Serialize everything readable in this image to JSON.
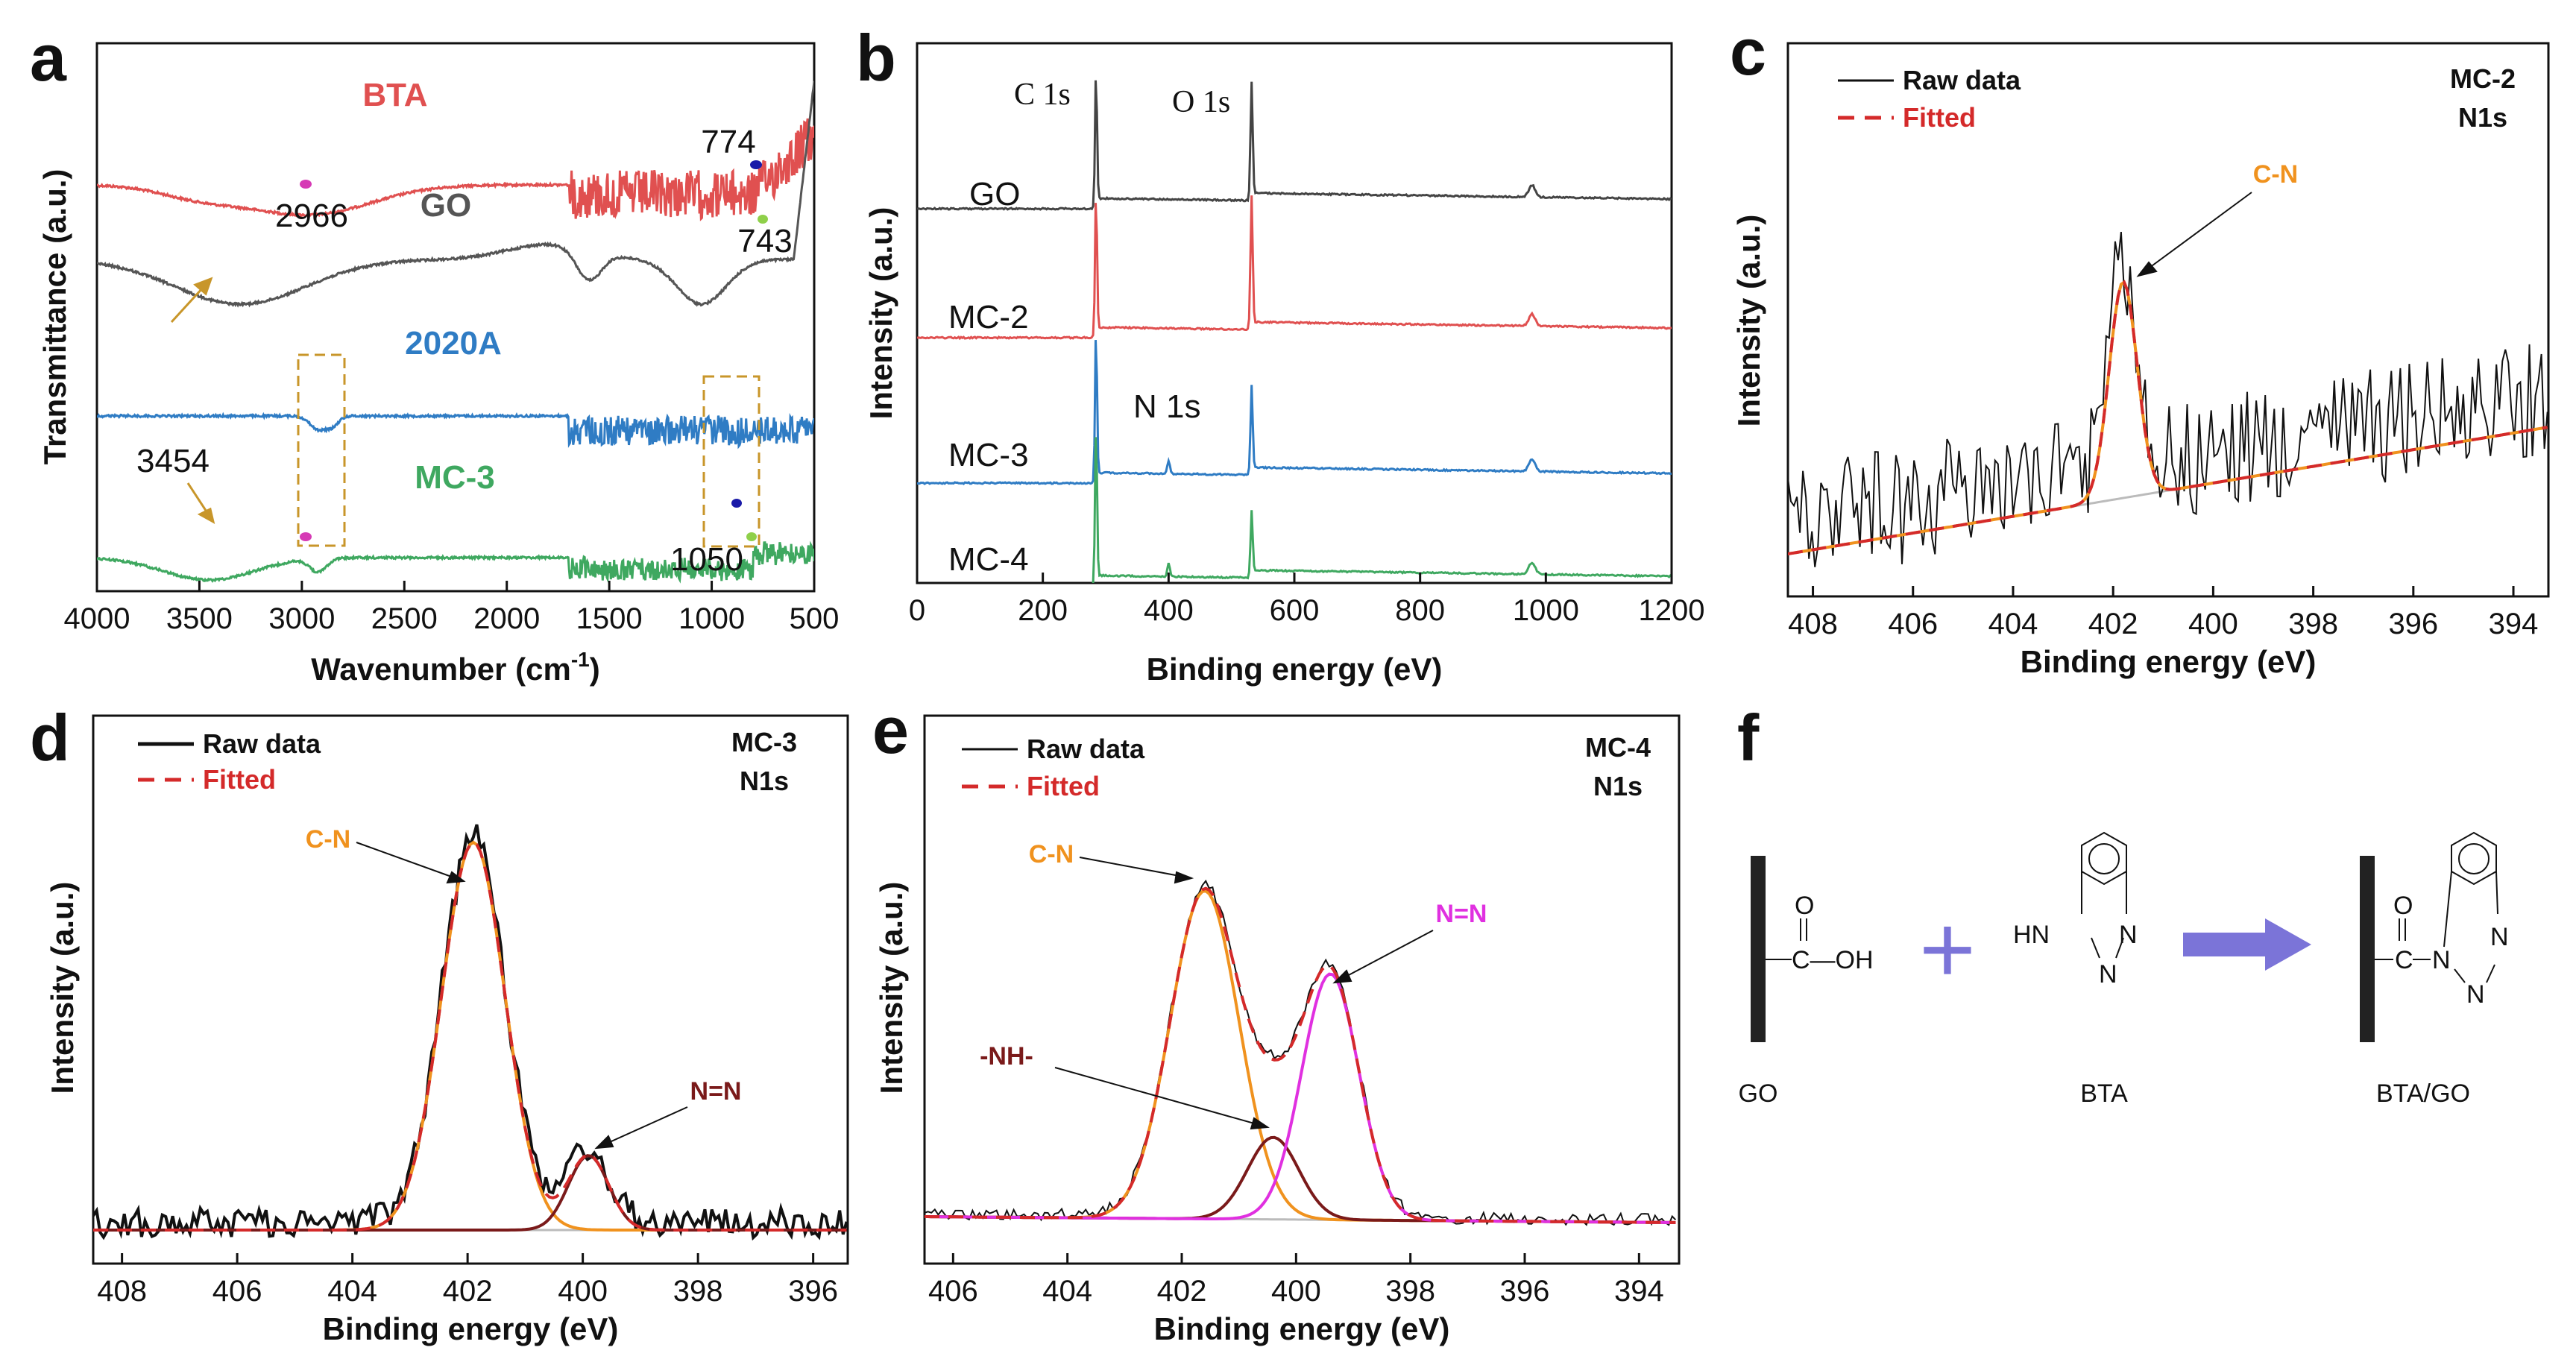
{
  "panels": {
    "a": "a",
    "b": "b",
    "c": "c",
    "d": "d",
    "e": "e",
    "f": "f"
  },
  "chart_data": [
    {
      "id": "a",
      "type": "line",
      "xlabel_main": "Wavenumber (cm",
      "xlabel_sup": "-1",
      "xlabel_end": ")",
      "ylabel": "Transmittance (a.u.)",
      "xlim": [
        4000,
        500
      ],
      "xticks": [
        "4000",
        "3500",
        "3000",
        "2500",
        "2000",
        "1500",
        "1000",
        "500"
      ],
      "xtick_values": [
        4000,
        3500,
        3000,
        2500,
        2000,
        1500,
        1000,
        500
      ],
      "series": [
        {
          "name": "BTA",
          "color": "#e05050"
        },
        {
          "name": "GO",
          "color": "#555555"
        },
        {
          "name": "2020A",
          "color": "#2f7cc4"
        },
        {
          "name": "MC-3",
          "color": "#3fa860"
        }
      ],
      "annotations": [
        "2966",
        "774",
        "743",
        "3454",
        "1050"
      ]
    },
    {
      "id": "b",
      "type": "line",
      "xlabel": "Binding energy (eV)",
      "ylabel": "Intensity (a.u.)",
      "xlim": [
        0,
        1200
      ],
      "xticks": [
        "0",
        "200",
        "400",
        "600",
        "800",
        "1000",
        "1200"
      ],
      "xtick_values": [
        0,
        200,
        400,
        600,
        800,
        1000,
        1200
      ],
      "series": [
        {
          "name": "GO",
          "color": "#444444"
        },
        {
          "name": "MC-2",
          "color": "#e05050"
        },
        {
          "name": "MC-3",
          "color": "#2f7cc4"
        },
        {
          "name": "MC-4",
          "color": "#3fa860"
        }
      ],
      "annotations": [
        "C 1s",
        "O 1s",
        "N 1s"
      ]
    },
    {
      "id": "c",
      "type": "line",
      "xlabel": "Binding energy (eV)",
      "ylabel": "Intensity (a.u.)",
      "xlim": [
        408.5,
        393.3
      ],
      "xticks": [
        "408",
        "406",
        "404",
        "402",
        "400",
        "398",
        "396",
        "394"
      ],
      "xtick_values": [
        408,
        406,
        404,
        402,
        400,
        398,
        396,
        394
      ],
      "sample": "MC-2",
      "region": "N1s",
      "legend": [
        "Raw data",
        "Fitted"
      ],
      "peaks": [
        {
          "label": "C-N",
          "center": 401.8,
          "color": "#f0921e"
        }
      ]
    },
    {
      "id": "d",
      "type": "line",
      "xlabel": "Binding energy (eV)",
      "ylabel": "Intensity (a.u.)",
      "xlim": [
        408.5,
        395.4
      ],
      "xticks": [
        "408",
        "406",
        "404",
        "402",
        "400",
        "398",
        "396"
      ],
      "xtick_values": [
        408,
        406,
        404,
        402,
        400,
        398,
        396
      ],
      "sample": "MC-3",
      "region": "N1s",
      "legend": [
        "Raw data",
        "Fitted"
      ],
      "peaks": [
        {
          "label": "C-N",
          "center": 401.9,
          "color": "#f0921e"
        },
        {
          "label": "N=N",
          "center": 399.9,
          "color": "#7a1a1a"
        }
      ]
    },
    {
      "id": "e",
      "type": "line",
      "xlabel": "Binding energy (eV)",
      "ylabel": "Intensity (a.u.)",
      "xlim": [
        406.5,
        393.3
      ],
      "xticks": [
        "406",
        "404",
        "402",
        "400",
        "398",
        "396",
        "394"
      ],
      "xtick_values": [
        406,
        404,
        402,
        400,
        398,
        396,
        394
      ],
      "sample": "MC-4",
      "region": "N1s",
      "legend": [
        "Raw data",
        "Fitted"
      ],
      "peaks": [
        {
          "label": "C-N",
          "center": 401.6,
          "color": "#f0921e"
        },
        {
          "label": "-NH-",
          "center": 400.4,
          "color": "#7a1a1a"
        },
        {
          "label": "N=N",
          "center": 399.4,
          "color": "#e030e0"
        }
      ]
    }
  ],
  "scheme": {
    "reactant1_label": "GO",
    "reactant2_label": "BTA",
    "product_label": "BTA/GO",
    "cooh_o": "O",
    "cooh_text": "C—OH",
    "bta_hn": "HN",
    "n_atom": "N",
    "product_o": "O",
    "product_c": "C",
    "plus": "+",
    "arrow_color": "#7b74d8"
  }
}
